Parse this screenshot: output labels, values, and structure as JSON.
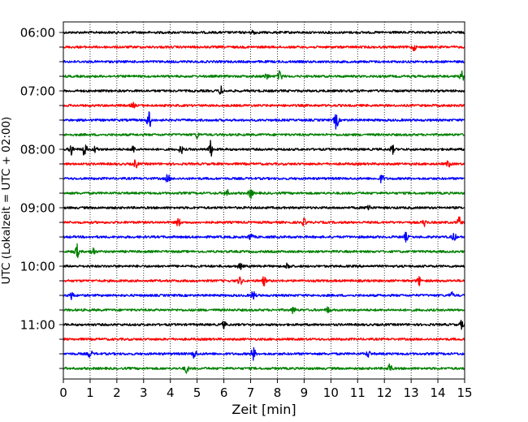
{
  "chart_data": {
    "type": "line",
    "title": "",
    "xlabel": "Zeit  [min]",
    "ylabel": "UTC (Lokalzeit = UTC + 02:00)",
    "xlim": [
      0,
      15
    ],
    "x_ticks": [
      0,
      1,
      2,
      3,
      4,
      5,
      6,
      7,
      8,
      9,
      10,
      11,
      12,
      13,
      14,
      15
    ],
    "y_tick_labels": [
      "06:00",
      "07:00",
      "08:00",
      "09:00",
      "10:00",
      "11:00"
    ],
    "traces_per_hour": 4,
    "trace_minutes": 15,
    "start_time": "06:00",
    "grid": "vertical dotted at each minute",
    "trace_color_cycle": [
      "#000000",
      "#ff0000",
      "#0000ff",
      "#008000"
    ],
    "traces": [
      {
        "start": "06:00",
        "color": "#000000",
        "events": [
          {
            "t": 7.1,
            "amp": 3
          }
        ]
      },
      {
        "start": "06:15",
        "color": "#ff0000",
        "events": [
          {
            "t": 13.1,
            "amp": 4
          }
        ]
      },
      {
        "start": "06:30",
        "color": "#0000ff",
        "events": []
      },
      {
        "start": "06:45",
        "color": "#008000",
        "events": [
          {
            "t": 7.6,
            "amp": 4
          },
          {
            "t": 8.1,
            "amp": 7
          },
          {
            "t": 14.9,
            "amp": 6
          }
        ]
      },
      {
        "start": "07:00",
        "color": "#000000",
        "events": [
          {
            "t": 5.9,
            "amp": 5
          }
        ]
      },
      {
        "start": "07:15",
        "color": "#ff0000",
        "events": [
          {
            "t": 2.6,
            "amp": 3
          }
        ]
      },
      {
        "start": "07:30",
        "color": "#0000ff",
        "events": [
          {
            "t": 3.2,
            "amp": 11
          },
          {
            "t": 10.2,
            "amp": 11
          }
        ]
      },
      {
        "start": "07:45",
        "color": "#008000",
        "events": [
          {
            "t": 5.0,
            "amp": 4
          }
        ]
      },
      {
        "start": "08:00",
        "color": "#000000",
        "events": [
          {
            "t": 0.3,
            "amp": 7
          },
          {
            "t": 0.8,
            "amp": 9
          },
          {
            "t": 1.2,
            "amp": 4
          },
          {
            "t": 2.6,
            "amp": 4
          },
          {
            "t": 4.4,
            "amp": 5
          },
          {
            "t": 5.5,
            "amp": 10
          },
          {
            "t": 12.3,
            "amp": 5
          }
        ]
      },
      {
        "start": "08:15",
        "color": "#ff0000",
        "events": [
          {
            "t": 2.7,
            "amp": 5
          },
          {
            "t": 14.4,
            "amp": 4
          }
        ]
      },
      {
        "start": "08:30",
        "color": "#0000ff",
        "events": [
          {
            "t": 3.9,
            "amp": 5
          },
          {
            "t": 11.9,
            "amp": 5
          }
        ]
      },
      {
        "start": "08:45",
        "color": "#008000",
        "events": [
          {
            "t": 6.1,
            "amp": 5
          },
          {
            "t": 7.0,
            "amp": 6
          }
        ]
      },
      {
        "start": "09:00",
        "color": "#000000",
        "events": [
          {
            "t": 11.4,
            "amp": 5
          }
        ]
      },
      {
        "start": "09:15",
        "color": "#ff0000",
        "events": [
          {
            "t": 4.3,
            "amp": 5
          },
          {
            "t": 9.0,
            "amp": 4
          },
          {
            "t": 13.5,
            "amp": 4
          },
          {
            "t": 14.8,
            "amp": 6
          }
        ]
      },
      {
        "start": "09:30",
        "color": "#0000ff",
        "events": [
          {
            "t": 7.0,
            "amp": 5
          },
          {
            "t": 12.8,
            "amp": 5
          },
          {
            "t": 14.6,
            "amp": 5
          }
        ]
      },
      {
        "start": "09:45",
        "color": "#008000",
        "events": [
          {
            "t": 0.5,
            "amp": 9
          },
          {
            "t": 1.1,
            "amp": 6
          }
        ]
      },
      {
        "start": "10:00",
        "color": "#000000",
        "events": [
          {
            "t": 6.6,
            "amp": 4
          },
          {
            "t": 8.4,
            "amp": 5
          }
        ]
      },
      {
        "start": "10:15",
        "color": "#ff0000",
        "events": [
          {
            "t": 6.6,
            "amp": 5
          },
          {
            "t": 7.5,
            "amp": 5
          },
          {
            "t": 13.3,
            "amp": 5
          }
        ]
      },
      {
        "start": "10:30",
        "color": "#0000ff",
        "events": [
          {
            "t": 0.3,
            "amp": 5
          },
          {
            "t": 7.1,
            "amp": 6
          },
          {
            "t": 14.5,
            "amp": 4
          }
        ]
      },
      {
        "start": "10:45",
        "color": "#008000",
        "events": [
          {
            "t": 8.6,
            "amp": 4
          },
          {
            "t": 9.9,
            "amp": 4
          }
        ]
      },
      {
        "start": "11:00",
        "color": "#000000",
        "events": [
          {
            "t": 6.0,
            "amp": 4
          },
          {
            "t": 14.9,
            "amp": 5
          }
        ]
      },
      {
        "start": "11:15",
        "color": "#ff0000",
        "events": []
      },
      {
        "start": "11:30",
        "color": "#0000ff",
        "events": [
          {
            "t": 1.0,
            "amp": 5
          },
          {
            "t": 4.9,
            "amp": 6
          },
          {
            "t": 7.1,
            "amp": 8
          },
          {
            "t": 11.4,
            "amp": 4
          }
        ]
      },
      {
        "start": "11:45",
        "color": "#008000",
        "events": [
          {
            "t": 4.6,
            "amp": 5
          },
          {
            "t": 12.2,
            "amp": 6
          }
        ]
      }
    ]
  }
}
